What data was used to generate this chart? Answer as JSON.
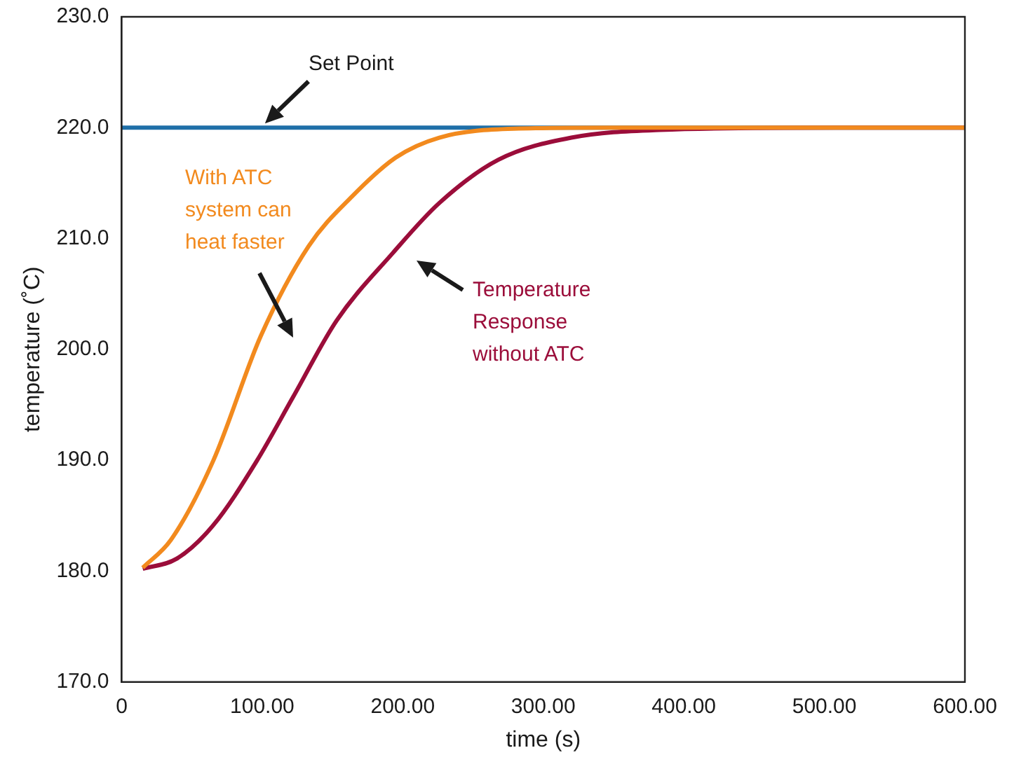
{
  "chart_data": {
    "type": "line",
    "xlabel": "time (s)",
    "ylabel": "temperature (˚C)",
    "xlim": [
      0,
      600
    ],
    "xticks": [
      0,
      {
        "value": 100,
        "label": "100.00"
      },
      {
        "value": 200,
        "label": "200.00"
      },
      {
        "value": 300,
        "label": "300.00"
      },
      {
        "value": 400,
        "label": "400.00"
      },
      {
        "value": 500,
        "label": "500.00"
      },
      {
        "value": 600,
        "label": "600.00"
      }
    ],
    "ylim": [
      170,
      230
    ],
    "yticks": [
      {
        "value": 170,
        "label": "170.0"
      },
      {
        "value": 180,
        "label": "180.0"
      },
      {
        "value": 190,
        "label": "190.0"
      },
      {
        "value": 200,
        "label": "200.0"
      },
      {
        "value": 210,
        "label": "210.0"
      },
      {
        "value": 220,
        "label": "220.0"
      },
      {
        "value": 230,
        "label": "230.0"
      }
    ],
    "grid": false,
    "legend": false,
    "marker": "none",
    "line_style": "solid",
    "series": [
      {
        "color": "#f28a1e",
        "x": [
          15,
          35,
          65,
          99,
          133,
          164,
          195,
          226,
          279,
          350,
          450,
          600
        ],
        "values": [
          180.3,
          182.8,
          189.9,
          201.2,
          209.3,
          213.8,
          217.3,
          219.1,
          219.9,
          220,
          220,
          220
        ]
      },
      {
        "color": "#9b0d3a",
        "x": [
          15,
          39,
          65,
          96,
          122,
          153,
          193,
          226,
          268,
          320,
          383,
          508,
          600
        ],
        "values": [
          180.2,
          181.1,
          184.1,
          189.9,
          195.7,
          202.6,
          208.7,
          213.2,
          217.1,
          219.1,
          219.8,
          220,
          220
        ]
      }
    ],
    "ref_lines": [
      {
        "axis": "y",
        "value": 220,
        "label": "Set Point",
        "color": "#1f6fa8"
      }
    ],
    "annotations": [
      "With ATC system can heat faster",
      "Temperature Response without ATC"
    ]
  }
}
